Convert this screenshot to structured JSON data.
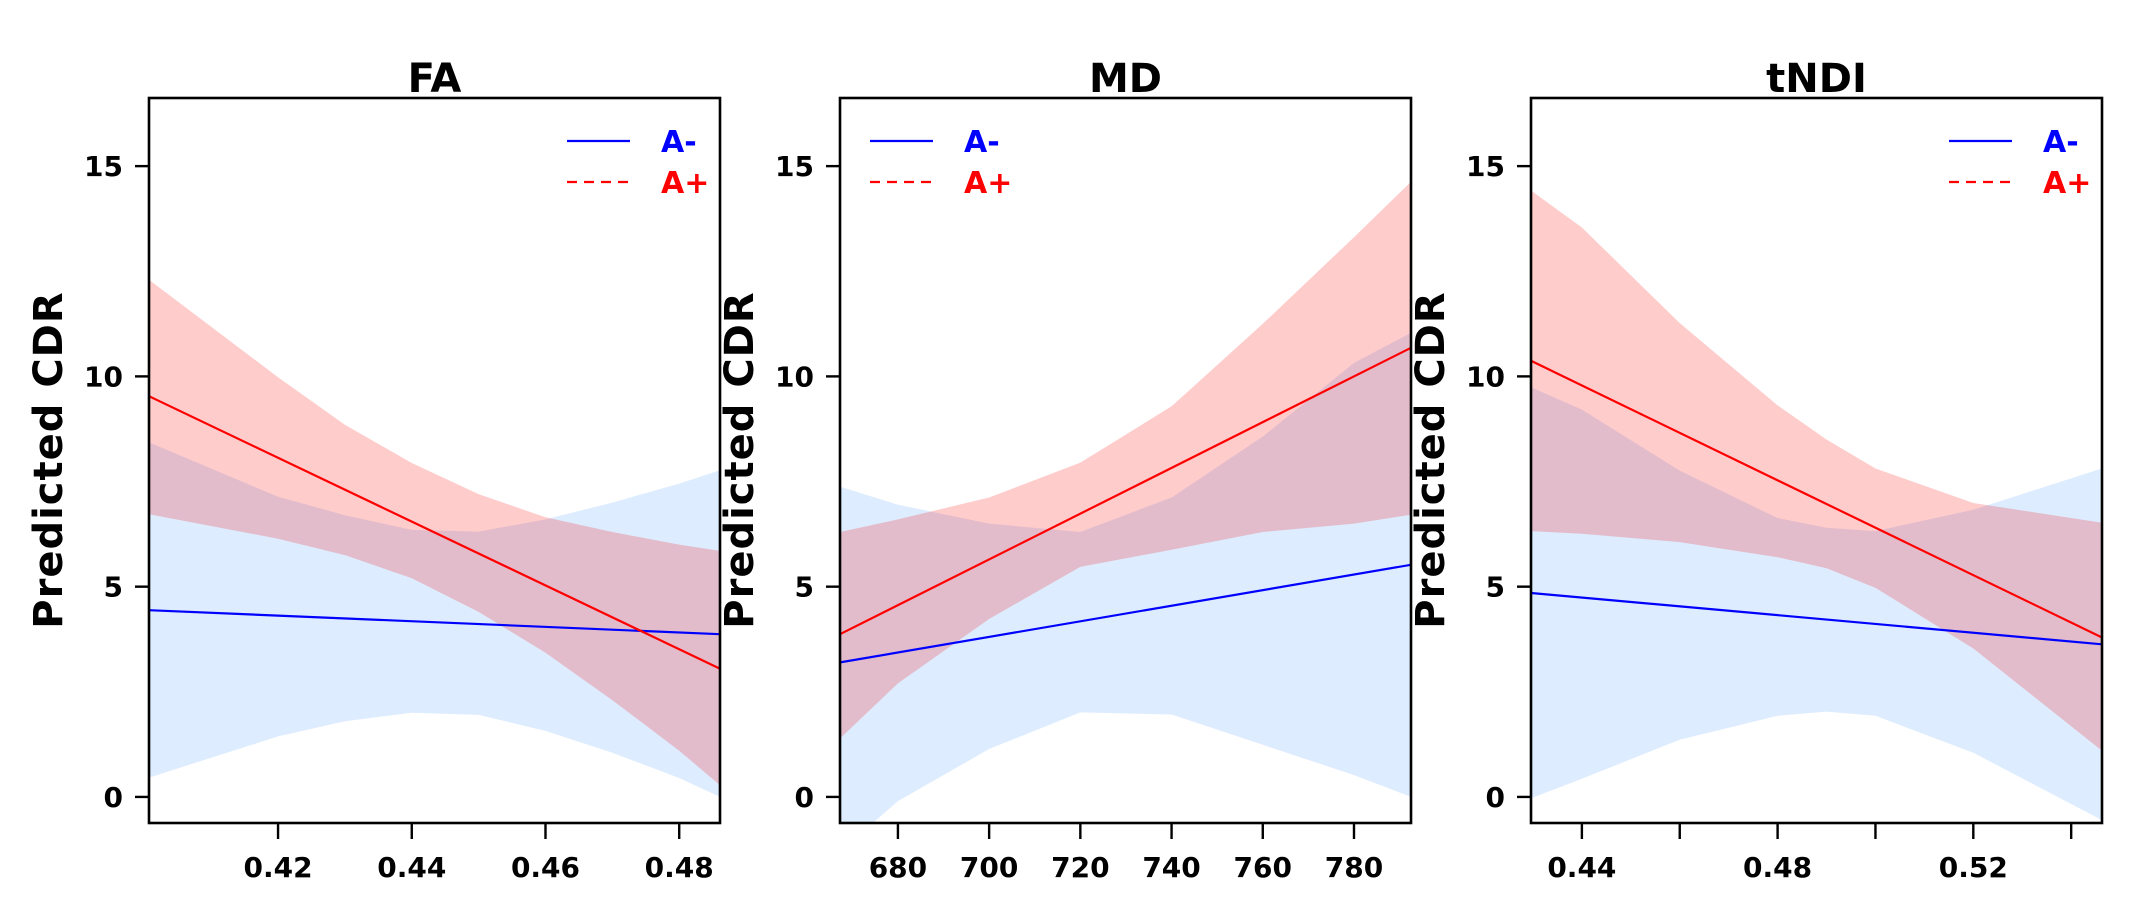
{
  "chart_data": [
    {
      "type": "line",
      "title": "FA",
      "xlabel": "",
      "ylabel": "Predicted CDR",
      "xlim": [
        0.4007,
        0.4861
      ],
      "ylim": [
        -0.62,
        16.62
      ],
      "xticks": [
        0.42,
        0.44,
        0.46,
        0.48
      ],
      "xtick_labels": [
        "0.42",
        "0.44",
        "0.46",
        "0.48"
      ],
      "yticks": [
        0,
        5,
        10,
        15
      ],
      "ytick_labels": [
        "0",
        "5",
        "10",
        "15"
      ],
      "grid": false,
      "legend": {
        "position": "top-right",
        "entries": [
          "A-",
          "A+"
        ]
      },
      "series": [
        {
          "name": "A-",
          "color": "#0000FF",
          "linestyle": "solid",
          "band_color": "#DDEEFF",
          "x": [
            0.4007,
            0.4861
          ],
          "y": [
            4.44,
            3.87
          ],
          "band_x": [
            0.4007,
            0.42,
            0.43,
            0.44,
            0.45,
            0.46,
            0.47,
            0.48,
            0.4861
          ],
          "band_upper": [
            8.43,
            7.14,
            6.7,
            6.35,
            6.31,
            6.6,
            7.0,
            7.45,
            7.77
          ],
          "band_lower": [
            0.46,
            1.44,
            1.8,
            2.0,
            1.95,
            1.57,
            1.05,
            0.45,
            0.0
          ]
        },
        {
          "name": "A+",
          "color": "#FF0000",
          "linestyle": "dashed",
          "band_color": "#FFCCCC",
          "x": [
            0.4007,
            0.4861
          ],
          "y": [
            9.53,
            3.05
          ],
          "band_x": [
            0.4007,
            0.42,
            0.43,
            0.44,
            0.45,
            0.46,
            0.47,
            0.48,
            0.4861
          ],
          "band_upper": [
            12.3,
            9.98,
            8.85,
            7.94,
            7.2,
            6.65,
            6.3,
            6.0,
            5.85
          ],
          "band_lower": [
            6.72,
            6.14,
            5.75,
            5.2,
            4.4,
            3.43,
            2.3,
            1.1,
            0.28
          ]
        }
      ]
    },
    {
      "type": "line",
      "title": "MD",
      "xlabel": "",
      "ylabel": "Predicted CDR",
      "xlim": [
        667.3,
        792.5
      ],
      "ylim": [
        -0.62,
        16.62
      ],
      "xticks": [
        680,
        700,
        720,
        740,
        760,
        780
      ],
      "xtick_labels": [
        "680",
        "700",
        "720",
        "740",
        "760",
        "780"
      ],
      "yticks": [
        0,
        5,
        10,
        15
      ],
      "ytick_labels": [
        "0",
        "5",
        "10",
        "15"
      ],
      "grid": false,
      "legend": {
        "position": "top-left",
        "entries": [
          "A-",
          "A+"
        ]
      },
      "series": [
        {
          "name": "A-",
          "color": "#0000FF",
          "linestyle": "solid",
          "band_color": "#DDEEFF",
          "x": [
            667.3,
            792.5
          ],
          "y": [
            3.2,
            5.52
          ],
          "band_x": [
            667.3,
            680,
            700,
            720,
            740,
            760,
            780,
            792.5
          ],
          "band_upper": [
            7.38,
            6.95,
            6.5,
            6.3,
            7.12,
            8.57,
            10.32,
            11.04
          ],
          "band_lower": [
            -1.3,
            -0.1,
            1.14,
            2.01,
            1.96,
            1.24,
            0.52,
            0.0
          ]
        },
        {
          "name": "A+",
          "color": "#FF0000",
          "linestyle": "dashed",
          "band_color": "#FFCCCC",
          "x": [
            667.3,
            792.5
          ],
          "y": [
            3.87,
            10.68
          ],
          "band_x": [
            667.3,
            680,
            700,
            720,
            740,
            760,
            780,
            792.5
          ],
          "band_upper": [
            6.3,
            6.6,
            7.12,
            7.95,
            9.29,
            11.25,
            13.31,
            14.63
          ],
          "band_lower": [
            1.39,
            2.7,
            4.23,
            5.47,
            5.88,
            6.3,
            6.5,
            6.71
          ]
        }
      ]
    },
    {
      "type": "line",
      "title": "tNDI",
      "xlabel": "",
      "ylabel": "Predicted CDR",
      "xlim": [
        0.4296,
        0.5463
      ],
      "ylim": [
        -0.62,
        16.62
      ],
      "xticks": [
        0.44,
        0.46,
        0.48,
        0.5,
        0.52,
        0.54
      ],
      "xtick_labels": [
        "0.44",
        "",
        "0.48",
        "",
        "0.52",
        ""
      ],
      "yticks": [
        0,
        5,
        10,
        15
      ],
      "ytick_labels": [
        "0",
        "5",
        "10",
        "15"
      ],
      "grid": false,
      "legend": {
        "position": "top-right",
        "entries": [
          "A-",
          "A+"
        ]
      },
      "series": [
        {
          "name": "A-",
          "color": "#0000FF",
          "linestyle": "solid",
          "band_color": "#DDEEFF",
          "x": [
            0.4296,
            0.5463
          ],
          "y": [
            4.85,
            3.63
          ],
          "band_x": [
            0.4296,
            0.44,
            0.46,
            0.48,
            0.49,
            0.5,
            0.52,
            0.5463
          ],
          "band_upper": [
            9.74,
            9.21,
            7.76,
            6.63,
            6.4,
            6.32,
            6.83,
            7.81
          ],
          "band_lower": [
            -0.03,
            0.43,
            1.36,
            1.93,
            2.03,
            1.93,
            1.05,
            -0.55
          ]
        },
        {
          "name": "A+",
          "color": "#FF0000",
          "linestyle": "dashed",
          "band_color": "#FFCCCC",
          "x": [
            0.4296,
            0.5463
          ],
          "y": [
            10.37,
            3.79
          ],
          "band_x": [
            0.4296,
            0.44,
            0.46,
            0.48,
            0.49,
            0.5,
            0.52,
            0.5463
          ],
          "band_upper": [
            14.42,
            13.54,
            11.27,
            9.31,
            8.5,
            7.81,
            6.99,
            6.52
          ],
          "band_lower": [
            6.32,
            6.26,
            6.06,
            5.7,
            5.44,
            4.97,
            3.53,
            1.1
          ]
        }
      ]
    }
  ]
}
